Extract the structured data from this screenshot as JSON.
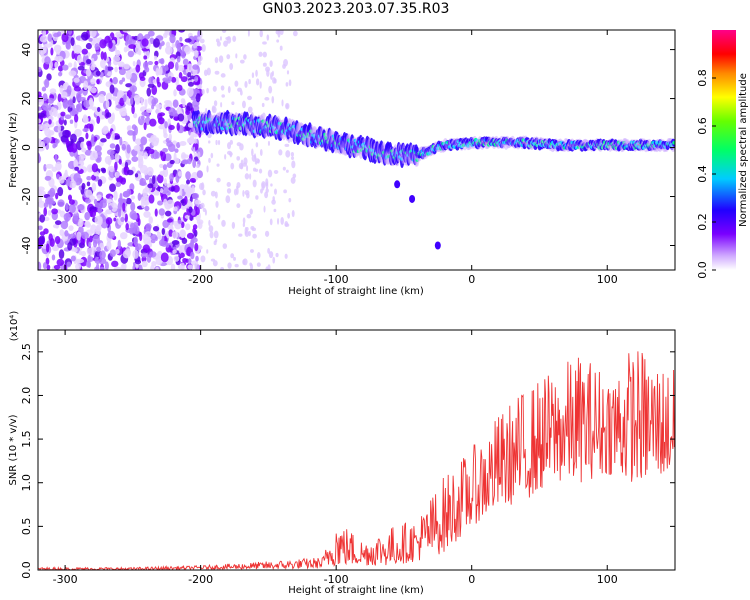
{
  "title": "GN03.2023.203.07.35.R03",
  "colors": {
    "snr_line": "#ee3333",
    "frame": "#000000"
  },
  "chart_data": [
    {
      "type": "heatmap",
      "title": "GN03.2023.203.07.35.R03",
      "xlabel": "Height of straight line (km)",
      "ylabel": "Frequency (Hz)",
      "xlim": [
        -320,
        150
      ],
      "ylim": [
        -50,
        48
      ],
      "xticks": [
        -300,
        -200,
        -100,
        0,
        100
      ],
      "yticks": [
        -40,
        -20,
        0,
        20,
        40
      ],
      "colorbar": {
        "label": "Normalized spectral amplitude",
        "range": [
          0.0,
          1.0
        ],
        "ticks": [
          "0.0",
          "0.2",
          "0.4",
          "0.6",
          "0.8"
        ],
        "colormap": "hsv-like (white, purple, blue, cyan, green, yellow, red, pink)"
      },
      "ridge": {
        "x": [
          -200,
          -180,
          -160,
          -140,
          -120,
          -100,
          -80,
          -60,
          -40,
          -20,
          0,
          20,
          40,
          60,
          80,
          100,
          120,
          150
        ],
        "freq": [
          10,
          10,
          9,
          8,
          5,
          2,
          0,
          -3,
          -3,
          1,
          2,
          2,
          2,
          1,
          1,
          1,
          1,
          1
        ]
      }
    },
    {
      "type": "line",
      "xlabel": "Height of straight line (km)",
      "ylabel": "SNR (10 * v/v)",
      "y_multiplier": "(x10⁴)",
      "xlim": [
        -320,
        150
      ],
      "ylim": [
        0.0,
        2.75
      ],
      "xticks": [
        -300,
        -200,
        -100,
        0,
        100
      ],
      "yticks": [
        "0.0",
        "0.5",
        "1.0",
        "1.5",
        "2.0",
        "2.5"
      ],
      "envelope": {
        "x": [
          -320,
          -250,
          -200,
          -150,
          -110,
          -100,
          -80,
          -60,
          -40,
          -20,
          0,
          20,
          40,
          60,
          80,
          100,
          120,
          150
        ],
        "low": [
          0.0,
          0.0,
          0.01,
          0.01,
          0.02,
          0.05,
          0.05,
          0.05,
          0.1,
          0.2,
          0.5,
          0.7,
          0.8,
          1.0,
          1.0,
          1.1,
          1.0,
          1.1
        ],
        "high": [
          0.03,
          0.03,
          0.05,
          0.1,
          0.15,
          0.6,
          0.35,
          0.5,
          0.6,
          1.1,
          1.4,
          1.8,
          2.1,
          2.3,
          2.5,
          2.3,
          2.6,
          2.3
        ]
      }
    }
  ]
}
